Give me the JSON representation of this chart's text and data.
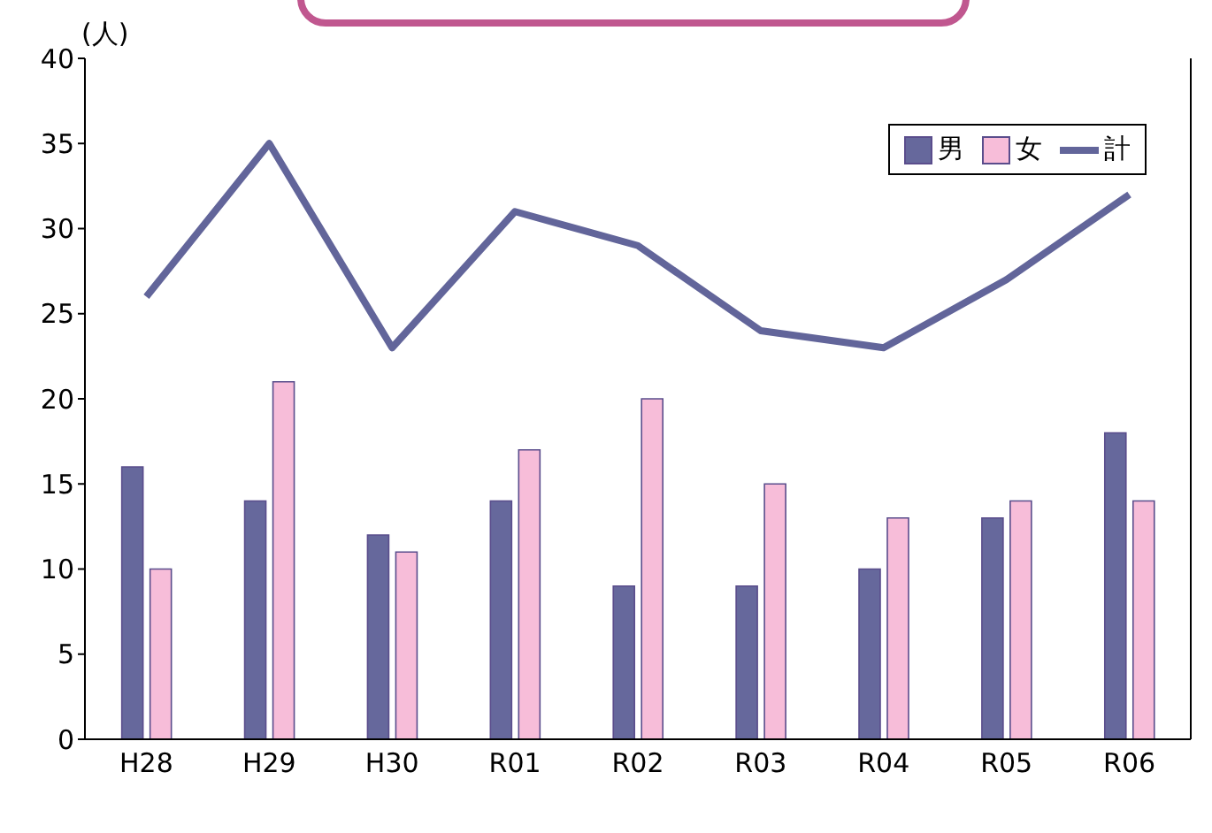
{
  "chart_data": {
    "type": "bar",
    "ylabel": "(人)",
    "categories": [
      "H28",
      "H29",
      "H30",
      "R01",
      "R02",
      "R03",
      "R04",
      "R05",
      "R06"
    ],
    "series": [
      {
        "name": "男",
        "color": "#66689c",
        "values": [
          16,
          14,
          12,
          14,
          9,
          9,
          10,
          13,
          18
        ]
      },
      {
        "name": "女",
        "color": "#f7bdd9",
        "values": [
          10,
          21,
          11,
          17,
          20,
          15,
          13,
          14,
          14
        ]
      },
      {
        "name": "計",
        "type": "line",
        "color": "#62659a",
        "values": [
          26,
          35,
          23,
          31,
          29,
          24,
          23,
          27,
          32
        ]
      }
    ],
    "ylim": [
      0,
      40
    ],
    "yticks": [
      0,
      5,
      10,
      15,
      20,
      25,
      30,
      35,
      40
    ],
    "grid": false,
    "legend": "top right",
    "marker": "none"
  }
}
